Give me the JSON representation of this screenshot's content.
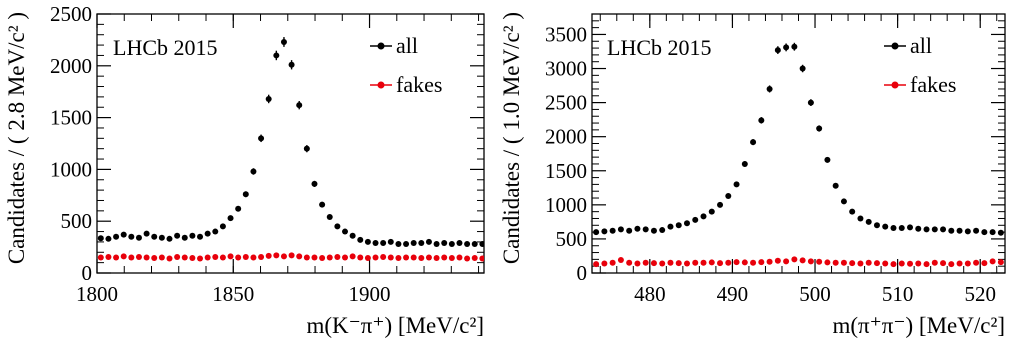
{
  "chart_data": [
    {
      "type": "scatter",
      "title": "",
      "annotation": "LHCb 2015",
      "ylabel": "Candidates / ( 2.8 MeV/c² )",
      "xlabel": "m(K⁻π⁺) [MeV/c²]",
      "xlim": [
        1800,
        1942
      ],
      "ylim": [
        0,
        2500
      ],
      "xticks": [
        1800,
        1850,
        1900
      ],
      "yticks": [
        0,
        500,
        1000,
        1500,
        2000,
        2500
      ],
      "legend_position": "top-right",
      "series": [
        {
          "name": "all",
          "color": "#000000",
          "x": [
            1801.4,
            1804.2,
            1807.0,
            1809.8,
            1812.6,
            1815.4,
            1818.2,
            1821.0,
            1823.8,
            1826.6,
            1829.4,
            1832.2,
            1835.0,
            1837.8,
            1840.6,
            1843.4,
            1846.2,
            1849.0,
            1851.8,
            1854.6,
            1857.4,
            1860.2,
            1863.0,
            1865.8,
            1868.6,
            1871.4,
            1874.2,
            1877.0,
            1879.8,
            1882.6,
            1885.4,
            1888.2,
            1891.0,
            1893.8,
            1896.6,
            1899.4,
            1902.2,
            1905.0,
            1907.8,
            1910.6,
            1913.4,
            1916.2,
            1919.0,
            1921.8,
            1924.6,
            1927.4,
            1930.2,
            1933.0,
            1935.8,
            1938.6,
            1941.4
          ],
          "y": [
            335,
            330,
            350,
            370,
            350,
            340,
            380,
            350,
            340,
            330,
            360,
            340,
            360,
            350,
            380,
            400,
            450,
            530,
            620,
            760,
            980,
            1300,
            1680,
            2100,
            2230,
            2010,
            1620,
            1200,
            860,
            660,
            540,
            450,
            400,
            360,
            320,
            300,
            290,
            290,
            300,
            280,
            280,
            290,
            290,
            300,
            280,
            290,
            280,
            290,
            280,
            280,
            280
          ]
        },
        {
          "name": "fakes",
          "color": "#e8000b",
          "x": [
            1801.4,
            1804.2,
            1807.0,
            1809.8,
            1812.6,
            1815.4,
            1818.2,
            1821.0,
            1823.8,
            1826.6,
            1829.4,
            1832.2,
            1835.0,
            1837.8,
            1840.6,
            1843.4,
            1846.2,
            1849.0,
            1851.8,
            1854.6,
            1857.4,
            1860.2,
            1863.0,
            1865.8,
            1868.6,
            1871.4,
            1874.2,
            1877.0,
            1879.8,
            1882.6,
            1885.4,
            1888.2,
            1891.0,
            1893.8,
            1896.6,
            1899.4,
            1902.2,
            1905.0,
            1907.8,
            1910.6,
            1913.4,
            1916.2,
            1919.0,
            1921.8,
            1924.6,
            1927.4,
            1930.2,
            1933.0,
            1935.8,
            1938.6,
            1941.4
          ],
          "y": [
            150,
            155,
            150,
            160,
            150,
            155,
            150,
            145,
            150,
            140,
            155,
            150,
            145,
            140,
            150,
            155,
            150,
            160,
            150,
            155,
            150,
            155,
            165,
            170,
            160,
            170,
            160,
            150,
            150,
            145,
            150,
            155,
            150,
            160,
            150,
            145,
            150,
            155,
            150,
            145,
            150,
            150,
            145,
            150,
            145,
            150,
            145,
            150,
            140,
            145,
            140
          ]
        }
      ]
    },
    {
      "type": "scatter",
      "title": "",
      "annotation": "LHCb 2015",
      "ylabel": "Candidates / ( 1.0 MeV/c² )",
      "xlabel": "m(π⁺π⁻) [MeV/c²]",
      "xlim": [
        473,
        523
      ],
      "ylim": [
        0,
        3800
      ],
      "xticks": [
        480,
        490,
        500,
        510,
        520
      ],
      "yticks": [
        0,
        500,
        1000,
        1500,
        2000,
        2500,
        3000,
        3500
      ],
      "legend_position": "top-right",
      "series": [
        {
          "name": "all",
          "color": "#000000",
          "x": [
            473.5,
            474.5,
            475.5,
            476.5,
            477.5,
            478.5,
            479.5,
            480.5,
            481.5,
            482.5,
            483.5,
            484.5,
            485.5,
            486.5,
            487.5,
            488.5,
            489.5,
            490.5,
            491.5,
            492.5,
            493.5,
            494.5,
            495.5,
            496.5,
            497.5,
            498.5,
            499.5,
            500.5,
            501.5,
            502.5,
            503.5,
            504.5,
            505.5,
            506.5,
            507.5,
            508.5,
            509.5,
            510.5,
            511.5,
            512.5,
            513.5,
            514.5,
            515.5,
            516.5,
            517.5,
            518.5,
            519.5,
            520.5,
            521.5,
            522.5
          ],
          "y": [
            600,
            610,
            620,
            640,
            620,
            650,
            640,
            620,
            630,
            680,
            700,
            730,
            780,
            830,
            900,
            1000,
            1130,
            1300,
            1600,
            1920,
            2240,
            2700,
            3270,
            3310,
            3320,
            3000,
            2500,
            2120,
            1660,
            1280,
            1050,
            900,
            800,
            750,
            700,
            680,
            660,
            660,
            670,
            650,
            640,
            640,
            640,
            620,
            620,
            610,
            620,
            600,
            600,
            590
          ]
        },
        {
          "name": "fakes",
          "color": "#e8000b",
          "x": [
            473.5,
            474.5,
            475.5,
            476.5,
            477.5,
            478.5,
            479.5,
            480.5,
            481.5,
            482.5,
            483.5,
            484.5,
            485.5,
            486.5,
            487.5,
            488.5,
            489.5,
            490.5,
            491.5,
            492.5,
            493.5,
            494.5,
            495.5,
            496.5,
            497.5,
            498.5,
            499.5,
            500.5,
            501.5,
            502.5,
            503.5,
            504.5,
            505.5,
            506.5,
            507.5,
            508.5,
            509.5,
            510.5,
            511.5,
            512.5,
            513.5,
            514.5,
            515.5,
            516.5,
            517.5,
            518.5,
            519.5,
            520.5,
            521.5,
            522.5
          ],
          "y": [
            130,
            140,
            150,
            190,
            150,
            140,
            150,
            145,
            140,
            150,
            145,
            140,
            150,
            150,
            155,
            145,
            150,
            160,
            155,
            150,
            160,
            165,
            180,
            170,
            200,
            185,
            170,
            165,
            155,
            150,
            150,
            145,
            140,
            150,
            145,
            140,
            130,
            140,
            135,
            140,
            130,
            150,
            145,
            130,
            140,
            140,
            150,
            145,
            170,
            160
          ]
        }
      ]
    }
  ]
}
